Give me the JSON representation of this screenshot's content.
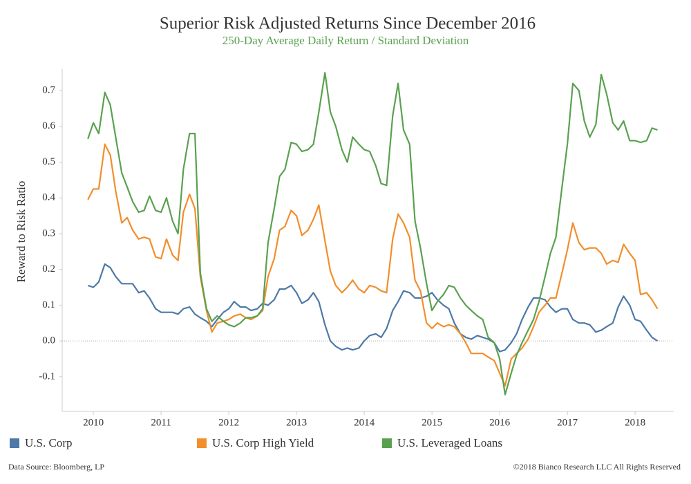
{
  "chart_data": {
    "type": "line",
    "title": "Superior Risk Adjusted Returns Since December 2016",
    "subtitle": "250-Day Average Daily Return / Standard Deviation",
    "ylabel": "Reward to Risk Ratio",
    "source": "Data Source: Bloomberg, LP",
    "copyright": "©2018 Bianco Research LLC  All Rights Reserved",
    "xlim": [
      2009.54,
      2018.57
    ],
    "ylim": [
      -0.197,
      0.76
    ],
    "xticks": [
      2010,
      2011,
      2012,
      2013,
      2014,
      2015,
      2016,
      2017,
      2018
    ],
    "yticks": [
      -0.1,
      {
        "value": 0,
        "label": "0.0"
      },
      0.1,
      0.2,
      0.3,
      0.4,
      0.5,
      0.6,
      0.7
    ],
    "zero_line": true,
    "legend": "bottom",
    "x": [
      2009.92,
      2010,
      2010.08,
      2010.17,
      2010.25,
      2010.33,
      2010.42,
      2010.5,
      2010.58,
      2010.67,
      2010.75,
      2010.83,
      2010.92,
      2011,
      2011.08,
      2011.17,
      2011.25,
      2011.33,
      2011.42,
      2011.5,
      2011.58,
      2011.67,
      2011.75,
      2011.83,
      2011.92,
      2012,
      2012.08,
      2012.17,
      2012.25,
      2012.33,
      2012.42,
      2012.5,
      2012.58,
      2012.67,
      2012.75,
      2012.83,
      2012.92,
      2013,
      2013.08,
      2013.17,
      2013.25,
      2013.33,
      2013.42,
      2013.5,
      2013.58,
      2013.67,
      2013.75,
      2013.83,
      2013.92,
      2014,
      2014.08,
      2014.17,
      2014.25,
      2014.33,
      2014.42,
      2014.5,
      2014.58,
      2014.67,
      2014.75,
      2014.83,
      2014.92,
      2015,
      2015.08,
      2015.17,
      2015.25,
      2015.33,
      2015.42,
      2015.5,
      2015.58,
      2015.67,
      2015.75,
      2015.83,
      2015.92,
      2016,
      2016.08,
      2016.17,
      2016.25,
      2016.33,
      2016.42,
      2016.5,
      2016.58,
      2016.67,
      2016.75,
      2016.83,
      2016.92,
      2017,
      2017.08,
      2017.17,
      2017.25,
      2017.33,
      2017.42,
      2017.5,
      2017.58,
      2017.67,
      2017.75,
      2017.83,
      2017.92,
      2018,
      2018.08,
      2018.17,
      2018.25,
      2018.33
    ],
    "series": [
      {
        "name": "U.S. Corp",
        "color": "#4e79a7",
        "values": [
          0.155,
          0.15,
          0.165,
          0.215,
          0.205,
          0.18,
          0.16,
          0.16,
          0.16,
          0.135,
          0.14,
          0.12,
          0.09,
          0.08,
          0.08,
          0.08,
          0.075,
          0.09,
          0.095,
          0.075,
          0.065,
          0.055,
          0.04,
          0.06,
          0.08,
          0.09,
          0.11,
          0.095,
          0.095,
          0.085,
          0.09,
          0.105,
          0.1,
          0.115,
          0.145,
          0.145,
          0.155,
          0.135,
          0.105,
          0.115,
          0.135,
          0.11,
          0.045,
          0,
          -0.015,
          -0.025,
          -0.02,
          -0.025,
          -0.02,
          0,
          0.015,
          0.02,
          0.01,
          0.035,
          0.085,
          0.11,
          0.14,
          0.135,
          0.12,
          0.12,
          0.125,
          0.135,
          0.115,
          0.1,
          0.09,
          0.05,
          0.02,
          0.01,
          0.005,
          0.015,
          0.01,
          0.005,
          -0.005,
          -0.03,
          -0.025,
          -0.005,
          0.02,
          0.06,
          0.095,
          0.12,
          0.12,
          0.115,
          0.095,
          0.08,
          0.09,
          0.09,
          0.06,
          0.05,
          0.05,
          0.045,
          0.025,
          0.03,
          0.04,
          0.05,
          0.095,
          0.125,
          0.1,
          0.06,
          0.055,
          0.03,
          0.01,
          0
        ]
      },
      {
        "name": "U.S. Corp High Yield",
        "color": "#f28e2b",
        "values": [
          0.395,
          0.425,
          0.425,
          0.55,
          0.52,
          0.42,
          0.33,
          0.345,
          0.31,
          0.285,
          0.29,
          0.285,
          0.235,
          0.23,
          0.285,
          0.24,
          0.225,
          0.36,
          0.41,
          0.37,
          0.18,
          0.085,
          0.025,
          0.05,
          0.055,
          0.06,
          0.07,
          0.075,
          0.065,
          0.06,
          0.07,
          0.085,
          0.18,
          0.23,
          0.31,
          0.32,
          0.365,
          0.35,
          0.295,
          0.31,
          0.34,
          0.38,
          0.28,
          0.195,
          0.155,
          0.135,
          0.15,
          0.17,
          0.145,
          0.135,
          0.155,
          0.15,
          0.14,
          0.135,
          0.285,
          0.355,
          0.33,
          0.29,
          0.17,
          0.14,
          0.05,
          0.035,
          0.05,
          0.04,
          0.045,
          0.04,
          0.02,
          -0.005,
          -0.035,
          -0.035,
          -0.035,
          -0.045,
          -0.055,
          -0.09,
          -0.125,
          -0.05,
          -0.035,
          -0.02,
          0.005,
          0.04,
          0.08,
          0.1,
          0.12,
          0.12,
          0.19,
          0.255,
          0.33,
          0.275,
          0.255,
          0.26,
          0.26,
          0.245,
          0.215,
          0.225,
          0.22,
          0.27,
          0.245,
          0.225,
          0.13,
          0.135,
          0.115,
          0.09
        ]
      },
      {
        "name": "U.S. Leveraged Loans",
        "color": "#59a14f",
        "values": [
          0.565,
          0.61,
          0.58,
          0.695,
          0.66,
          0.57,
          0.47,
          0.43,
          0.39,
          0.36,
          0.365,
          0.405,
          0.365,
          0.36,
          0.4,
          0.335,
          0.3,
          0.48,
          0.58,
          0.58,
          0.19,
          0.09,
          0.055,
          0.07,
          0.055,
          0.045,
          0.04,
          0.05,
          0.065,
          0.065,
          0.07,
          0.09,
          0.275,
          0.37,
          0.46,
          0.48,
          0.555,
          0.55,
          0.53,
          0.535,
          0.55,
          0.64,
          0.75,
          0.64,
          0.6,
          0.535,
          0.5,
          0.57,
          0.55,
          0.535,
          0.53,
          0.49,
          0.44,
          0.435,
          0.63,
          0.72,
          0.59,
          0.55,
          0.335,
          0.26,
          0.16,
          0.085,
          0.11,
          0.13,
          0.155,
          0.15,
          0.12,
          0.1,
          0.085,
          0.07,
          0.06,
          0.01,
          -0.005,
          -0.05,
          -0.15,
          -0.09,
          -0.04,
          -0.005,
          0.03,
          0.06,
          0.11,
          0.18,
          0.245,
          0.29,
          0.43,
          0.55,
          0.72,
          0.7,
          0.615,
          0.57,
          0.605,
          0.745,
          0.69,
          0.61,
          0.59,
          0.615,
          0.56,
          0.56,
          0.555,
          0.56,
          0.595,
          0.59
        ]
      }
    ]
  }
}
